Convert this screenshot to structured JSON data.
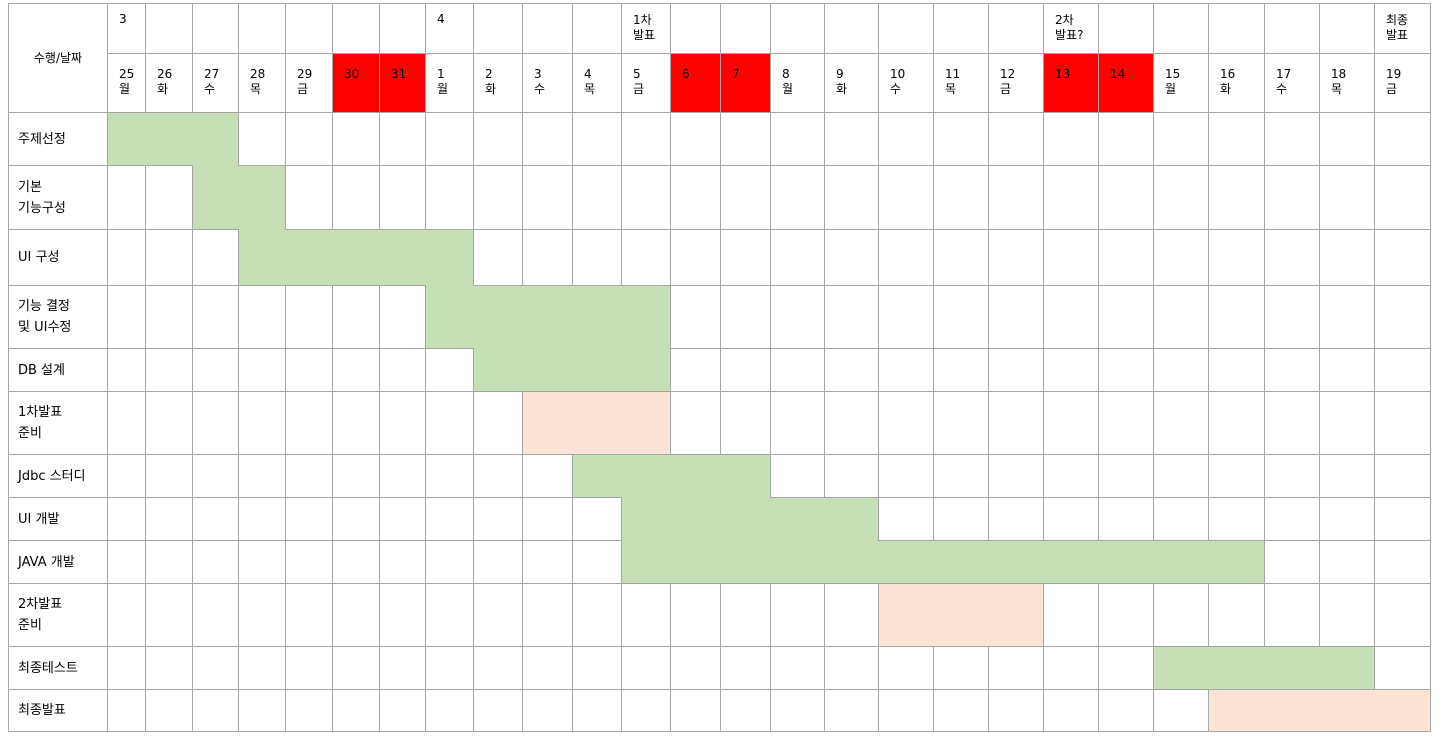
{
  "corner_label": "수행/날짜",
  "month_markers": [
    {
      "col": 0,
      "text": "3"
    },
    {
      "col": 7,
      "text": "4"
    }
  ],
  "milestones": [
    {
      "col": 11,
      "text": "1차\n발표"
    },
    {
      "col": 19,
      "text": "2차\n발표?"
    },
    {
      "col": 25,
      "text": "최종\n발표"
    }
  ],
  "dates": [
    {
      "day": "25",
      "weekday": "월"
    },
    {
      "day": "26",
      "weekday": "화"
    },
    {
      "day": "27",
      "weekday": "수"
    },
    {
      "day": "28",
      "weekday": "목"
    },
    {
      "day": "29",
      "weekday": "금"
    },
    {
      "day": "30",
      "weekday": "",
      "holiday": true
    },
    {
      "day": "31",
      "weekday": "",
      "holiday": true
    },
    {
      "day": "1",
      "weekday": "월"
    },
    {
      "day": "2",
      "weekday": "화"
    },
    {
      "day": "3",
      "weekday": "수"
    },
    {
      "day": "4",
      "weekday": "목"
    },
    {
      "day": "5",
      "weekday": "금"
    },
    {
      "day": "6",
      "weekday": "",
      "holiday": true
    },
    {
      "day": "7",
      "weekday": "",
      "holiday": true
    },
    {
      "day": "8",
      "weekday": "월"
    },
    {
      "day": "9",
      "weekday": "화"
    },
    {
      "day": "10",
      "weekday": "수"
    },
    {
      "day": "11",
      "weekday": "목"
    },
    {
      "day": "12",
      "weekday": "금"
    },
    {
      "day": "13",
      "weekday": "",
      "holiday": true
    },
    {
      "day": "14",
      "weekday": "",
      "holiday": true
    },
    {
      "day": "15",
      "weekday": "월"
    },
    {
      "day": "16",
      "weekday": "화"
    },
    {
      "day": "17",
      "weekday": "수"
    },
    {
      "day": "18",
      "weekday": "목"
    },
    {
      "day": "19",
      "weekday": "금"
    }
  ],
  "colors": {
    "work": "#c6dfb4",
    "presentation": "#fbe3d6",
    "holiday": "#ff0000",
    "grid": "#a6a6a6"
  },
  "tasks": [
    {
      "label": "주제선정",
      "start": 0,
      "end": 2,
      "kind": "work"
    },
    {
      "label": "기본\n기능구성",
      "start": 2,
      "end": 3,
      "kind": "work"
    },
    {
      "label": "UI 구성",
      "start": 3,
      "end": 7,
      "kind": "work"
    },
    {
      "label": "기능 결정\n 및 UI수정",
      "start": 7,
      "end": 11,
      "kind": "work"
    },
    {
      "label": "DB 설계",
      "start": 8,
      "end": 11,
      "kind": "work"
    },
    {
      "label": "1차발표\n준비",
      "start": 9,
      "end": 11,
      "kind": "presentation"
    },
    {
      "label": "Jdbc 스터디",
      "start": 10,
      "end": 13,
      "kind": "work"
    },
    {
      "label": "UI 개발",
      "start": 11,
      "end": 15,
      "kind": "work"
    },
    {
      "label": "JAVA 개발",
      "start": 11,
      "end": 22,
      "kind": "work"
    },
    {
      "label": "2차발표\n준비",
      "start": 16,
      "end": 18,
      "kind": "presentation"
    },
    {
      "label": "최종테스트",
      "start": 21,
      "end": 24,
      "kind": "work"
    },
    {
      "label": "최종발표",
      "start": 22,
      "end": 25,
      "kind": "presentation"
    }
  ]
}
